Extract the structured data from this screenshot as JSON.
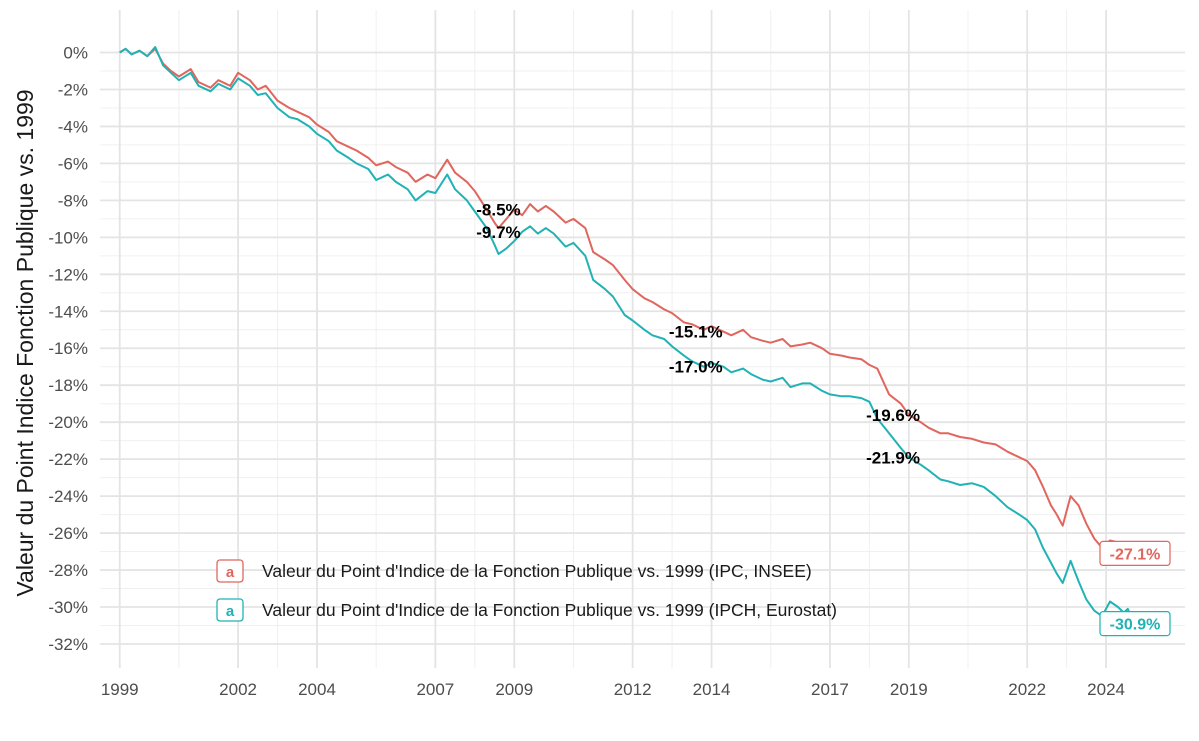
{
  "chart_data": {
    "type": "line",
    "title": "",
    "xlabel": "",
    "ylabel": "Valeur du Point Indice Fonction Publique vs. 1999",
    "xlim": [
      1998.5,
      2026.0
    ],
    "ylim": [
      -33.3,
      2.3
    ],
    "x_ticks": [
      1999,
      2002,
      2004,
      2007,
      2009,
      2012,
      2014,
      2017,
      2019,
      2022,
      2024
    ],
    "y_ticks": [
      0,
      -2,
      -4,
      -6,
      -8,
      -10,
      -12,
      -14,
      -16,
      -18,
      -20,
      -22,
      -24,
      -26,
      -28,
      -30,
      -32
    ],
    "y_tick_suffix": "%",
    "grid": true,
    "legend_position": "bottom-left",
    "legend_key_glyph": "a",
    "series": [
      {
        "name": "Valeur du Point d'Indice de la Fonction Publique vs. 1999 (IPC, INSEE)",
        "color": "#e0665e",
        "x": [
          1999.0,
          1999.15,
          1999.3,
          1999.5,
          1999.7,
          1999.9,
          2000.1,
          2000.3,
          2000.5,
          2000.8,
          2001.0,
          2001.3,
          2001.5,
          2001.8,
          2002.0,
          2002.3,
          2002.5,
          2002.7,
          2003.0,
          2003.3,
          2003.5,
          2003.8,
          2004.0,
          2004.3,
          2004.5,
          2004.8,
          2005.0,
          2005.3,
          2005.5,
          2005.8,
          2006.0,
          2006.3,
          2006.5,
          2006.8,
          2007.0,
          2007.3,
          2007.5,
          2007.8,
          2008.0,
          2008.3,
          2008.5,
          2008.6,
          2008.8,
          2009.0,
          2009.2,
          2009.4,
          2009.6,
          2009.8,
          2010.0,
          2010.3,
          2010.5,
          2010.8,
          2011.0,
          2011.3,
          2011.5,
          2011.8,
          2012.0,
          2012.3,
          2012.5,
          2012.8,
          2013.0,
          2013.3,
          2013.5,
          2013.8,
          2014.0,
          2014.3,
          2014.5,
          2014.8,
          2015.0,
          2015.3,
          2015.5,
          2015.8,
          2016.0,
          2016.3,
          2016.5,
          2016.8,
          2017.0,
          2017.3,
          2017.5,
          2017.8,
          2018.0,
          2018.2,
          2018.5,
          2018.8,
          2019.0,
          2019.3,
          2019.5,
          2019.8,
          2020.0,
          2020.3,
          2020.6,
          2020.9,
          2021.2,
          2021.5,
          2021.8,
          2022.0,
          2022.2,
          2022.4,
          2022.6,
          2022.75,
          2022.9,
          2023.1,
          2023.3,
          2023.5,
          2023.7,
          2023.9,
          2024.1,
          2024.3,
          2024.45,
          2024.55,
          2024.65,
          2024.8
        ],
        "values": [
          0,
          0.2,
          -0.1,
          0.1,
          -0.2,
          0.2,
          -0.6,
          -1.0,
          -1.3,
          -0.9,
          -1.6,
          -1.9,
          -1.5,
          -1.8,
          -1.1,
          -1.5,
          -2.0,
          -1.8,
          -2.6,
          -3.0,
          -3.2,
          -3.5,
          -3.9,
          -4.3,
          -4.8,
          -5.1,
          -5.3,
          -5.7,
          -6.1,
          -5.9,
          -6.2,
          -6.5,
          -7.0,
          -6.6,
          -6.8,
          -5.8,
          -6.5,
          -7.0,
          -7.5,
          -8.5,
          -9.2,
          -9.5,
          -9.0,
          -8.5,
          -8.8,
          -8.2,
          -8.6,
          -8.3,
          -8.6,
          -9.2,
          -9.0,
          -9.5,
          -10.8,
          -11.2,
          -11.5,
          -12.3,
          -12.8,
          -13.3,
          -13.5,
          -13.9,
          -14.1,
          -14.6,
          -14.7,
          -15.0,
          -14.8,
          -15.1,
          -15.3,
          -15.0,
          -15.4,
          -15.6,
          -15.7,
          -15.5,
          -15.9,
          -15.8,
          -15.7,
          -16.0,
          -16.3,
          -16.4,
          -16.5,
          -16.6,
          -16.9,
          -17.1,
          -18.5,
          -19.0,
          -19.6,
          -20.0,
          -20.3,
          -20.6,
          -20.6,
          -20.8,
          -20.9,
          -21.1,
          -21.2,
          -21.6,
          -21.9,
          -22.1,
          -22.6,
          -23.5,
          -24.5,
          -25.0,
          -25.6,
          -24.0,
          -24.5,
          -25.5,
          -26.3,
          -26.8,
          -26.4,
          -26.5,
          -26.7,
          -26.9,
          -27.2,
          -27.1
        ]
      },
      {
        "name": "Valeur du Point d'Indice de la Fonction Publique vs. 1999 (IPCH, Eurostat)",
        "color": "#21b2b6",
        "x": [
          1999.0,
          1999.15,
          1999.3,
          1999.5,
          1999.7,
          1999.9,
          2000.1,
          2000.3,
          2000.5,
          2000.8,
          2001.0,
          2001.3,
          2001.5,
          2001.8,
          2002.0,
          2002.3,
          2002.5,
          2002.7,
          2003.0,
          2003.3,
          2003.5,
          2003.8,
          2004.0,
          2004.3,
          2004.5,
          2004.8,
          2005.0,
          2005.3,
          2005.5,
          2005.8,
          2006.0,
          2006.3,
          2006.5,
          2006.8,
          2007.0,
          2007.3,
          2007.5,
          2007.8,
          2008.0,
          2008.3,
          2008.5,
          2008.6,
          2008.8,
          2009.0,
          2009.2,
          2009.4,
          2009.6,
          2009.8,
          2010.0,
          2010.3,
          2010.5,
          2010.8,
          2011.0,
          2011.3,
          2011.5,
          2011.8,
          2012.0,
          2012.3,
          2012.5,
          2012.8,
          2013.0,
          2013.3,
          2013.5,
          2013.8,
          2014.0,
          2014.3,
          2014.5,
          2014.8,
          2015.0,
          2015.3,
          2015.5,
          2015.8,
          2016.0,
          2016.3,
          2016.5,
          2016.8,
          2017.0,
          2017.3,
          2017.5,
          2017.8,
          2018.0,
          2018.2,
          2018.5,
          2018.8,
          2019.0,
          2019.3,
          2019.5,
          2019.8,
          2020.0,
          2020.3,
          2020.6,
          2020.9,
          2021.2,
          2021.5,
          2021.8,
          2022.0,
          2022.2,
          2022.4,
          2022.6,
          2022.75,
          2022.9,
          2023.1,
          2023.3,
          2023.5,
          2023.7,
          2023.9,
          2024.1,
          2024.3,
          2024.45,
          2024.55,
          2024.65,
          2024.8
        ],
        "values": [
          0,
          0.2,
          -0.1,
          0.1,
          -0.2,
          0.3,
          -0.7,
          -1.1,
          -1.5,
          -1.1,
          -1.8,
          -2.1,
          -1.7,
          -2.0,
          -1.4,
          -1.8,
          -2.3,
          -2.2,
          -3.0,
          -3.5,
          -3.6,
          -4.0,
          -4.4,
          -4.8,
          -5.3,
          -5.7,
          -6.0,
          -6.3,
          -6.9,
          -6.6,
          -7.0,
          -7.4,
          -8.0,
          -7.5,
          -7.6,
          -6.6,
          -7.4,
          -8.0,
          -8.6,
          -9.5,
          -10.4,
          -10.9,
          -10.6,
          -10.2,
          -9.7,
          -9.4,
          -9.8,
          -9.5,
          -9.8,
          -10.5,
          -10.3,
          -11.0,
          -12.3,
          -12.8,
          -13.2,
          -14.2,
          -14.5,
          -15.0,
          -15.3,
          -15.5,
          -15.9,
          -16.4,
          -16.7,
          -17.0,
          -16.8,
          -17.0,
          -17.3,
          -17.1,
          -17.4,
          -17.7,
          -17.8,
          -17.6,
          -18.1,
          -17.9,
          -17.9,
          -18.3,
          -18.5,
          -18.6,
          -18.6,
          -18.7,
          -18.9,
          -19.8,
          -20.6,
          -21.4,
          -21.9,
          -22.3,
          -22.6,
          -23.1,
          -23.2,
          -23.4,
          -23.3,
          -23.5,
          -24.0,
          -24.6,
          -25.0,
          -25.3,
          -25.8,
          -26.8,
          -27.6,
          -28.2,
          -28.7,
          -27.5,
          -28.6,
          -29.6,
          -30.2,
          -30.5,
          -29.7,
          -30.0,
          -30.3,
          -30.1,
          -30.6,
          -30.9
        ]
      }
    ],
    "annotations": [
      {
        "text": "-8.5%",
        "x": 2008.6,
        "y": -8.5
      },
      {
        "text": "-9.7%",
        "x": 2008.6,
        "y": -9.7
      },
      {
        "text": "-15.1%",
        "x": 2013.6,
        "y": -15.1
      },
      {
        "text": "-17.0%",
        "x": 2013.6,
        "y": -17.0
      },
      {
        "text": "-19.6%",
        "x": 2018.6,
        "y": -19.6
      },
      {
        "text": "-21.9%",
        "x": 2018.6,
        "y": -21.9
      }
    ],
    "end_labels": [
      {
        "text": "-27.1%",
        "series": 0,
        "y": -27.1
      },
      {
        "text": "-30.9%",
        "series": 1,
        "y": -30.9
      }
    ]
  }
}
